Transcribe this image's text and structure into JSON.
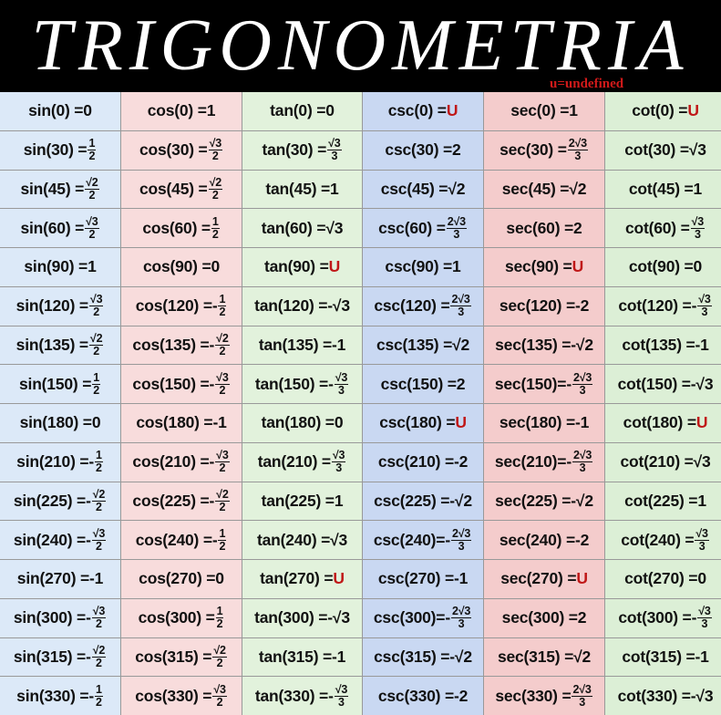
{
  "title": "TRIGONOMETRIA",
  "legend_note": "u=undefined",
  "colors": {
    "sin": "#dce9f8",
    "cos": "#f8dcdc",
    "tan": "#e2f2dc",
    "csc": "#c9d8f2",
    "sec": "#f4cccc",
    "cot": "#dcefd6",
    "undefined": "#c01818"
  },
  "rows": [
    [
      {
        "lhs": "sin(0) = ",
        "val": "0"
      },
      {
        "lhs": "cos(0) = ",
        "val": "1"
      },
      {
        "lhs": "tan(0) = ",
        "val": "0"
      },
      {
        "lhs": "csc(0) = ",
        "val": "U",
        "undef": true
      },
      {
        "lhs": "sec(0) = ",
        "val": "1"
      },
      {
        "lhs": "cot(0) = ",
        "val": "U",
        "undef": true
      }
    ],
    [
      {
        "lhs": "sin(30) = ",
        "num": "1",
        "den": "2"
      },
      {
        "lhs": "cos(30) = ",
        "num": "√3",
        "den": "2"
      },
      {
        "lhs": "tan(30) = ",
        "num": "√3",
        "den": "3"
      },
      {
        "lhs": "csc(30) = ",
        "val": "2"
      },
      {
        "lhs": "sec(30) = ",
        "num": "2√3",
        "den": "3"
      },
      {
        "lhs": "cot(30) = ",
        "val": "√3"
      }
    ],
    [
      {
        "lhs": "sin(45) = ",
        "num": "√2",
        "den": "2"
      },
      {
        "lhs": "cos(45) = ",
        "num": "√2",
        "den": "2"
      },
      {
        "lhs": "tan(45) = ",
        "val": "1"
      },
      {
        "lhs": "csc(45) = ",
        "val": "√2"
      },
      {
        "lhs": "sec(45) = ",
        "val": "√2"
      },
      {
        "lhs": "cot(45) = ",
        "val": "1"
      }
    ],
    [
      {
        "lhs": "sin(60) = ",
        "num": "√3",
        "den": "2"
      },
      {
        "lhs": "cos(60) = ",
        "num": "1",
        "den": "2"
      },
      {
        "lhs": "tan(60) = ",
        "val": "√3"
      },
      {
        "lhs": "csc(60) = ",
        "num": "2√3",
        "den": "3"
      },
      {
        "lhs": "sec(60) = ",
        "val": "2"
      },
      {
        "lhs": "cot(60) = ",
        "num": "√3",
        "den": "3"
      }
    ],
    [
      {
        "lhs": "sin(90) = ",
        "val": "1"
      },
      {
        "lhs": "cos(90) = ",
        "val": "0"
      },
      {
        "lhs": "tan(90) = ",
        "val": "U",
        "undef": true
      },
      {
        "lhs": "csc(90) = ",
        "val": "1"
      },
      {
        "lhs": "sec(90) = ",
        "val": "U",
        "undef": true
      },
      {
        "lhs": "cot(90) = ",
        "val": "0"
      }
    ],
    [
      {
        "lhs": "sin(120) = ",
        "num": "√3",
        "den": "2"
      },
      {
        "lhs": "cos(120) =",
        "sign": "-",
        "num": "1",
        "den": "2"
      },
      {
        "lhs": "tan(120) = ",
        "val": "-√3"
      },
      {
        "lhs": "csc(120) = ",
        "num": "2√3",
        "den": "3"
      },
      {
        "lhs": "sec(120) = ",
        "val": "-2"
      },
      {
        "lhs": "cot(120) = ",
        "sign": "-",
        "num": "√3",
        "den": "3"
      }
    ],
    [
      {
        "lhs": "sin(135) = ",
        "num": "√2",
        "den": "2"
      },
      {
        "lhs": "cos(135) =",
        "sign": "-",
        "num": "√2",
        "den": "2"
      },
      {
        "lhs": "tan(135) = ",
        "val": "-1"
      },
      {
        "lhs": "csc(135) = ",
        "val": "√2"
      },
      {
        "lhs": "sec(135) =",
        "val": "-√2"
      },
      {
        "lhs": "cot(135) = ",
        "val": "-1"
      }
    ],
    [
      {
        "lhs": "sin(150) = ",
        "num": "1",
        "den": "2"
      },
      {
        "lhs": "cos(150) =",
        "sign": "-",
        "num": "√3",
        "den": "2"
      },
      {
        "lhs": "tan(150) = ",
        "sign": "-",
        "num": "√3",
        "den": "3"
      },
      {
        "lhs": "csc(150) = ",
        "val": "2"
      },
      {
        "lhs": "sec(150)=",
        "sign": "-",
        "num": "2√3",
        "den": "3"
      },
      {
        "lhs": "cot(150) = ",
        "val": "-√3"
      }
    ],
    [
      {
        "lhs": "sin(180) = ",
        "val": "0"
      },
      {
        "lhs": "cos(180) = ",
        "val": "-1"
      },
      {
        "lhs": "tan(180) = ",
        "val": "0"
      },
      {
        "lhs": "csc(180) = ",
        "val": "U",
        "undef": true
      },
      {
        "lhs": "sec(180) = ",
        "val": "-1"
      },
      {
        "lhs": "cot(180) = ",
        "val": "U",
        "undef": true
      }
    ],
    [
      {
        "lhs": "sin(210) =",
        "sign": "-",
        "num": "1",
        "den": "2"
      },
      {
        "lhs": "cos(210) =",
        "sign": "-",
        "num": "√3",
        "den": "2"
      },
      {
        "lhs": "tan(210) = ",
        "num": "√3",
        "den": "3"
      },
      {
        "lhs": "csc(210) = ",
        "val": "-2"
      },
      {
        "lhs": "sec(210)=",
        "sign": "-",
        "num": "2√3",
        "den": "3"
      },
      {
        "lhs": "cot(210) = ",
        "val": "√3"
      }
    ],
    [
      {
        "lhs": "sin(225) =",
        "sign": "-",
        "num": "√2",
        "den": "2"
      },
      {
        "lhs": "cos(225) =",
        "sign": "-",
        "num": "√2",
        "den": "2"
      },
      {
        "lhs": "tan(225) = ",
        "val": "1"
      },
      {
        "lhs": "csc(225) =",
        "val": "-√2"
      },
      {
        "lhs": "sec(225) =",
        "val": "-√2"
      },
      {
        "lhs": "cot(225) = ",
        "val": "1"
      }
    ],
    [
      {
        "lhs": "sin(240) =",
        "sign": "-",
        "num": "√3",
        "den": "2"
      },
      {
        "lhs": "cos(240) =",
        "sign": "-",
        "num": "1",
        "den": "2"
      },
      {
        "lhs": "tan(240) = ",
        "val": "√3"
      },
      {
        "lhs": "csc(240)=",
        "sign": "-",
        "num": "2√3",
        "den": "3"
      },
      {
        "lhs": "sec(240) = ",
        "val": "-2"
      },
      {
        "lhs": "cot(240) = ",
        "num": "√3",
        "den": "3"
      }
    ],
    [
      {
        "lhs": "sin(270) = ",
        "val": "-1"
      },
      {
        "lhs": "cos(270) = ",
        "val": "0"
      },
      {
        "lhs": "tan(270) = ",
        "val": "U",
        "undef": true
      },
      {
        "lhs": "csc(270) = ",
        "val": "-1"
      },
      {
        "lhs": "sec(270) = ",
        "val": "U",
        "undef": true
      },
      {
        "lhs": "cot(270) = ",
        "val": "0"
      }
    ],
    [
      {
        "lhs": "sin(300) =",
        "sign": "-",
        "num": "√3",
        "den": "2"
      },
      {
        "lhs": "cos(300) = ",
        "num": "1",
        "den": "2"
      },
      {
        "lhs": "tan(300) =",
        "val": "-√3"
      },
      {
        "lhs": "csc(300)=",
        "sign": "-",
        "num": "2√3",
        "den": "3"
      },
      {
        "lhs": "sec(300) = ",
        "val": "2"
      },
      {
        "lhs": "cot(300) = ",
        "sign": "-",
        "num": "√3",
        "den": "3"
      }
    ],
    [
      {
        "lhs": "sin(315) =",
        "sign": "-",
        "num": "√2",
        "den": "2"
      },
      {
        "lhs": "cos(315) = ",
        "num": "√2",
        "den": "2"
      },
      {
        "lhs": "tan(315) = ",
        "val": "-1"
      },
      {
        "lhs": "csc(315) =",
        "val": "-√2"
      },
      {
        "lhs": "sec(315) = ",
        "val": "√2"
      },
      {
        "lhs": "cot(315) = ",
        "val": "-1"
      }
    ],
    [
      {
        "lhs": "sin(330) =",
        "sign": "-",
        "num": "1",
        "den": "2"
      },
      {
        "lhs": "cos(330) = ",
        "num": "√3",
        "den": "2"
      },
      {
        "lhs": "tan(330) =",
        "sign": "-",
        "num": "√3",
        "den": "3"
      },
      {
        "lhs": "csc(330) = ",
        "val": "-2"
      },
      {
        "lhs": "sec(330) = ",
        "num": "2√3",
        "den": "3"
      },
      {
        "lhs": "cot(330) =",
        "val": "-√3"
      }
    ]
  ]
}
